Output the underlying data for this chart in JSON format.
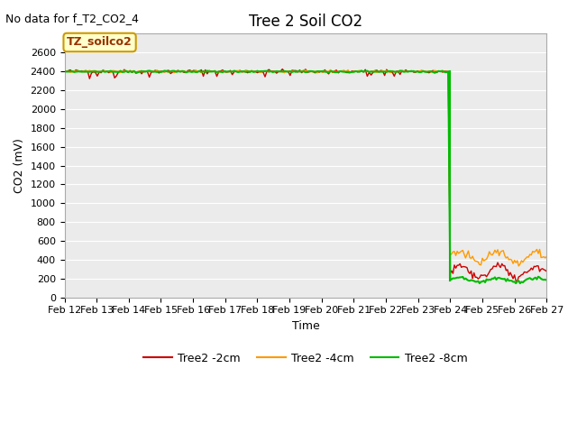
{
  "title": "Tree 2 Soil CO2",
  "subtitle": "No data for f_T2_CO2_4",
  "ylabel": "CO2 (mV)",
  "xlabel": "Time",
  "fig_bg_color": "#ffffff",
  "plot_bg_color": "#ebebeb",
  "ylim": [
    0,
    2800
  ],
  "yticks": [
    0,
    200,
    400,
    600,
    800,
    1000,
    1200,
    1400,
    1600,
    1800,
    2000,
    2200,
    2400,
    2600
  ],
  "xticklabels": [
    "Feb 12",
    "Feb 13",
    "Feb 14",
    "Feb 15",
    "Feb 16",
    "Feb 17",
    "Feb 18",
    "Feb 19",
    "Feb 20",
    "Feb 21",
    "Feb 22",
    "Feb 23",
    "Feb 24",
    "Feb 25",
    "Feb 26",
    "Feb 27"
  ],
  "legend_labels": [
    "Tree2 -2cm",
    "Tree2 -4cm",
    "Tree2 -8cm"
  ],
  "legend_colors": [
    "#cc0000",
    "#ff9900",
    "#00bb00"
  ],
  "annotation_text": "TZ_soilco2",
  "annotation_bg": "#ffffcc",
  "annotation_border": "#cc9900",
  "line_color_2cm": "#cc0000",
  "line_color_4cm": "#ff9900",
  "line_color_8cm": "#00bb00",
  "grid_color": "#ffffff",
  "title_fontsize": 12,
  "subtitle_fontsize": 9,
  "axis_label_fontsize": 9,
  "tick_fontsize": 8,
  "legend_fontsize": 9,
  "annotation_fontsize": 9
}
